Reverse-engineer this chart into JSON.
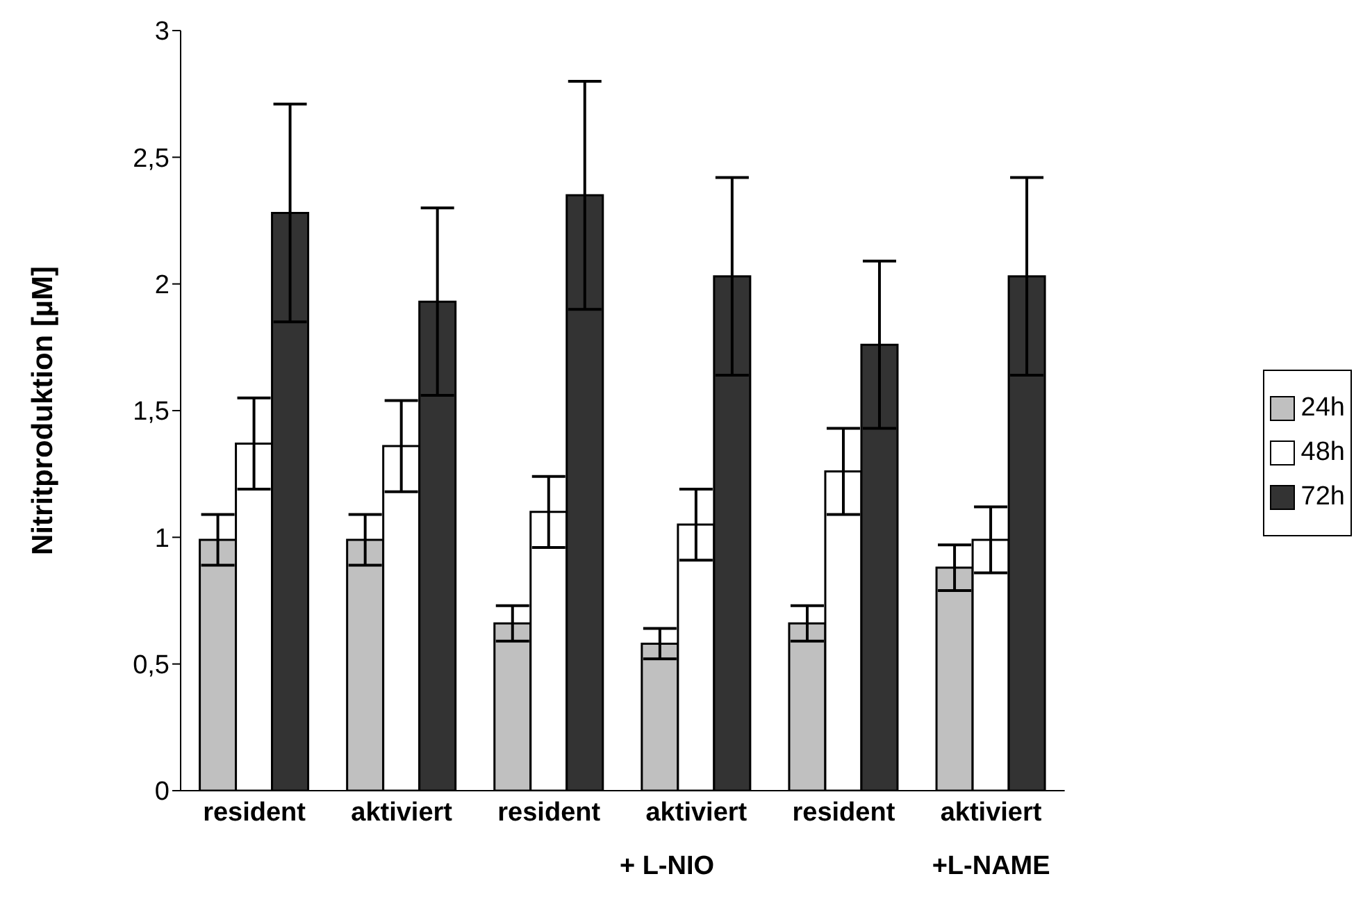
{
  "chart_data": {
    "type": "bar",
    "ylabel": "Nitritproduktion [µM]",
    "categories": [
      "resident",
      "aktiviert",
      "resident",
      "aktiviert",
      "resident",
      "aktiviert"
    ],
    "series": [
      {
        "name": "24h",
        "color": "#c0c0c0",
        "values": [
          0.99,
          0.99,
          0.66,
          0.58,
          0.66,
          0.88
        ],
        "errors": [
          0.1,
          0.1,
          0.07,
          0.06,
          0.07,
          0.09
        ]
      },
      {
        "name": "48h",
        "color": "#ffffff",
        "values": [
          1.37,
          1.36,
          1.1,
          1.05,
          1.26,
          0.99
        ],
        "errors": [
          0.18,
          0.18,
          0.14,
          0.14,
          0.17,
          0.13
        ]
      },
      {
        "name": "72h",
        "color": "#333333",
        "values": [
          2.28,
          1.93,
          2.35,
          2.03,
          1.76,
          2.03
        ],
        "errors": [
          0.43,
          0.37,
          0.45,
          0.39,
          0.33,
          0.39
        ]
      }
    ],
    "annotations": [
      "+ L-NIO",
      "+L-NAME"
    ],
    "ylim": [
      0,
      3
    ],
    "yticks": [
      {
        "value": 0,
        "label": "0"
      },
      {
        "value": 0.5,
        "label": "0,5"
      },
      {
        "value": 1,
        "label": "1"
      },
      {
        "value": 1.5,
        "label": "1,5"
      },
      {
        "value": 2,
        "label": "2"
      },
      {
        "value": 2.5,
        "label": "2,5"
      },
      {
        "value": 3,
        "label": "3"
      }
    ],
    "grid": false,
    "legend": "right"
  }
}
